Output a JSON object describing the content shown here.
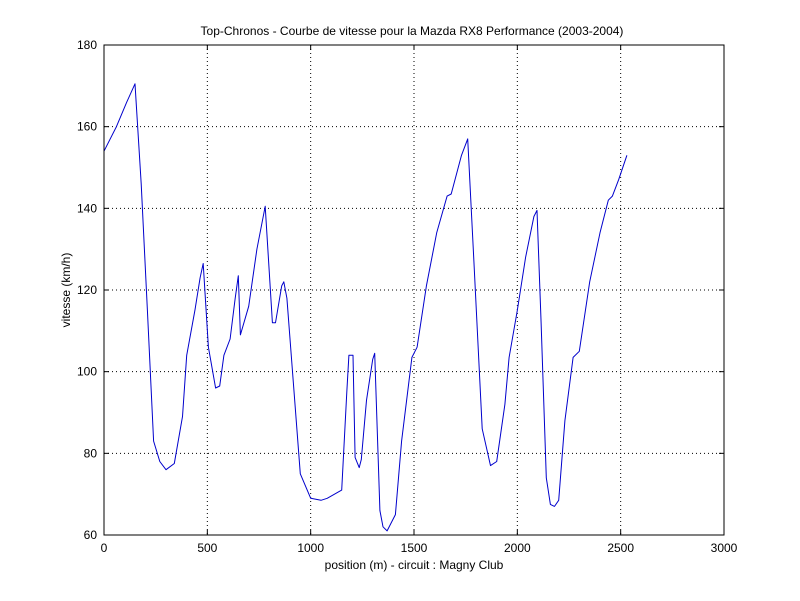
{
  "chart_data": {
    "type": "line",
    "title": "Top-Chronos - Courbe de vitesse pour la Mazda RX8 Performance (2003-2004)",
    "xlabel": "position (m) - circuit : Magny Club",
    "ylabel": "vitesse (km/h)",
    "xlim": [
      0,
      3000
    ],
    "ylim": [
      60,
      180
    ],
    "xticks": [
      0,
      500,
      1000,
      1500,
      2000,
      2500,
      3000
    ],
    "yticks": [
      60,
      80,
      100,
      120,
      140,
      160,
      180
    ],
    "xtick_labels": [
      "0",
      "500",
      "1000",
      "1500",
      "2000",
      "2500",
      "3000"
    ],
    "ytick_labels": [
      "60",
      "80",
      "100",
      "120",
      "140",
      "160",
      "180"
    ],
    "grid": true,
    "line_color": "#0000cc",
    "series": [
      {
        "x": [
          0,
          60,
          110,
          150,
          180,
          210,
          240,
          270,
          300,
          340,
          380,
          400,
          440,
          465,
          480,
          505,
          540,
          560,
          580,
          610,
          635,
          650,
          660,
          700,
          740,
          780,
          815,
          830,
          860,
          870,
          885,
          950,
          1000,
          1050,
          1080,
          1150,
          1175,
          1185,
          1205,
          1215,
          1235,
          1245,
          1270,
          1300,
          1310,
          1335,
          1350,
          1370,
          1410,
          1440,
          1490,
          1515,
          1560,
          1610,
          1660,
          1680,
          1730,
          1760,
          1790,
          1830,
          1870,
          1900,
          1940,
          1960,
          2000,
          2040,
          2080,
          2095,
          2115,
          2140,
          2160,
          2180,
          2200,
          2230,
          2270,
          2300,
          2350,
          2400,
          2440,
          2460,
          2490,
          2530
        ],
        "y": [
          154,
          160,
          166,
          170.5,
          146,
          115,
          83,
          78,
          76,
          77.5,
          89,
          104,
          115,
          123,
          126.5,
          106,
          96,
          96.5,
          104,
          108,
          118,
          123.5,
          109,
          116,
          130,
          140.5,
          112,
          112,
          121,
          122,
          118,
          75,
          69,
          68.5,
          69,
          71,
          95,
          104,
          104,
          79,
          76.5,
          78.5,
          93,
          103,
          104.5,
          66,
          62,
          61,
          65,
          83,
          103.5,
          106,
          121,
          134,
          143,
          143.5,
          153,
          157,
          127,
          86,
          77,
          78,
          92,
          103.5,
          115,
          128,
          138,
          139.5,
          112,
          74,
          67.5,
          67,
          68.5,
          88,
          103.5,
          105,
          122,
          134,
          142,
          143,
          147,
          153
        ]
      }
    ]
  }
}
